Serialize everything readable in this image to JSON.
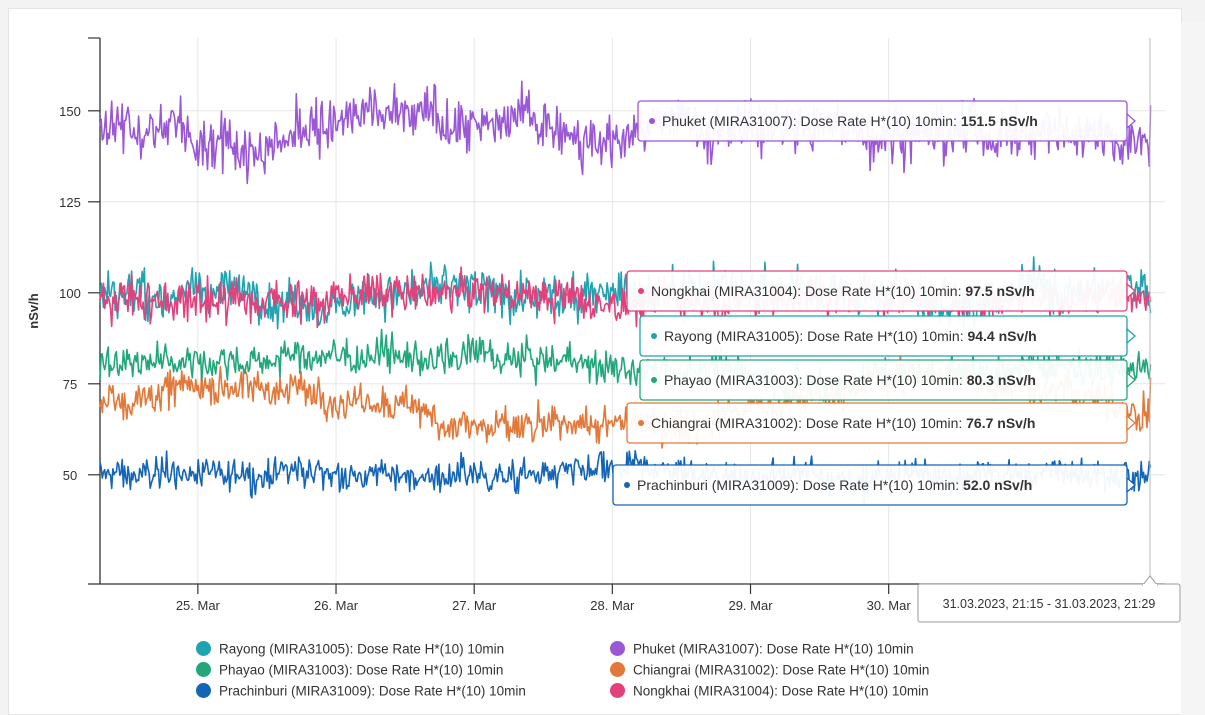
{
  "chart_data": {
    "type": "line",
    "title": "",
    "xlabel": "",
    "ylabel": "nSv/h",
    "ylim": [
      20,
      170
    ],
    "xlim": [
      "2023-03-24T07:00",
      "2023-04-01T00:00"
    ],
    "x_ticks": [
      {
        "label": "25. Mar",
        "date": "2023-03-25"
      },
      {
        "label": "26. Mar",
        "date": "2023-03-26"
      },
      {
        "label": "27. Mar",
        "date": "2023-03-27"
      },
      {
        "label": "28. Mar",
        "date": "2023-03-28"
      },
      {
        "label": "29. Mar",
        "date": "2023-03-29"
      },
      {
        "label": "30. Mar",
        "date": "2023-03-30"
      }
    ],
    "y_ticks": [
      50,
      75,
      100,
      125,
      150
    ],
    "grid": true,
    "legend_position": "bottom",
    "series": [
      {
        "name": "Rayong (MIRA31005): Dose Rate H*(10) 10min",
        "short": "Rayong (MIRA31005): Dose Rate H*(10) 10min:",
        "value_label": "94.4 nSv/h",
        "color": "#1fa3b0",
        "mean": 100,
        "noise": 5,
        "last": 94.4
      },
      {
        "name": "Phuket (MIRA31007): Dose Rate H*(10) 10min",
        "short": "Phuket (MIRA31007): Dose Rate H*(10) 10min:",
        "value_label": "151.5 nSv/h",
        "color": "#9a57d6",
        "mean": 146,
        "noise": 6,
        "last": 151.5
      },
      {
        "name": "Phayao (MIRA31003): Dose Rate H*(10) 10min",
        "short": "Phayao (MIRA31003): Dose Rate H*(10) 10min:",
        "value_label": "80.3 nSv/h",
        "color": "#22a77a",
        "mean": 80,
        "noise": 4,
        "last": 80.3
      },
      {
        "name": "Chiangrai (MIRA31002): Dose Rate H*(10) 10min",
        "short": "Chiangrai (MIRA31002): Dose Rate H*(10) 10min:",
        "value_label": "76.7 nSv/h",
        "color": "#e2793a",
        "mean": 76,
        "noise": 4,
        "last": 76.7
      },
      {
        "name": "Prachinburi (MIRA31009): Dose Rate H*(10) 10min",
        "short": "Prachinburi (MIRA31009): Dose Rate H*(10) 10min:",
        "value_label": "52.0 nSv/h",
        "color": "#1565b7",
        "mean": 50,
        "noise": 3.5,
        "last": 52.0
      },
      {
        "name": "Nongkhai (MIRA31004): Dose Rate H*(10) 10min",
        "short": "Nongkhai (MIRA31004): Dose Rate H*(10) 10min:",
        "value_label": "97.5 nSv/h",
        "color": "#e3407c",
        "mean": 99,
        "noise": 4.5,
        "last": 97.5
      }
    ],
    "crosshair_label": "31.03.2023, 21:15 - 31.03.2023, 21:29"
  }
}
